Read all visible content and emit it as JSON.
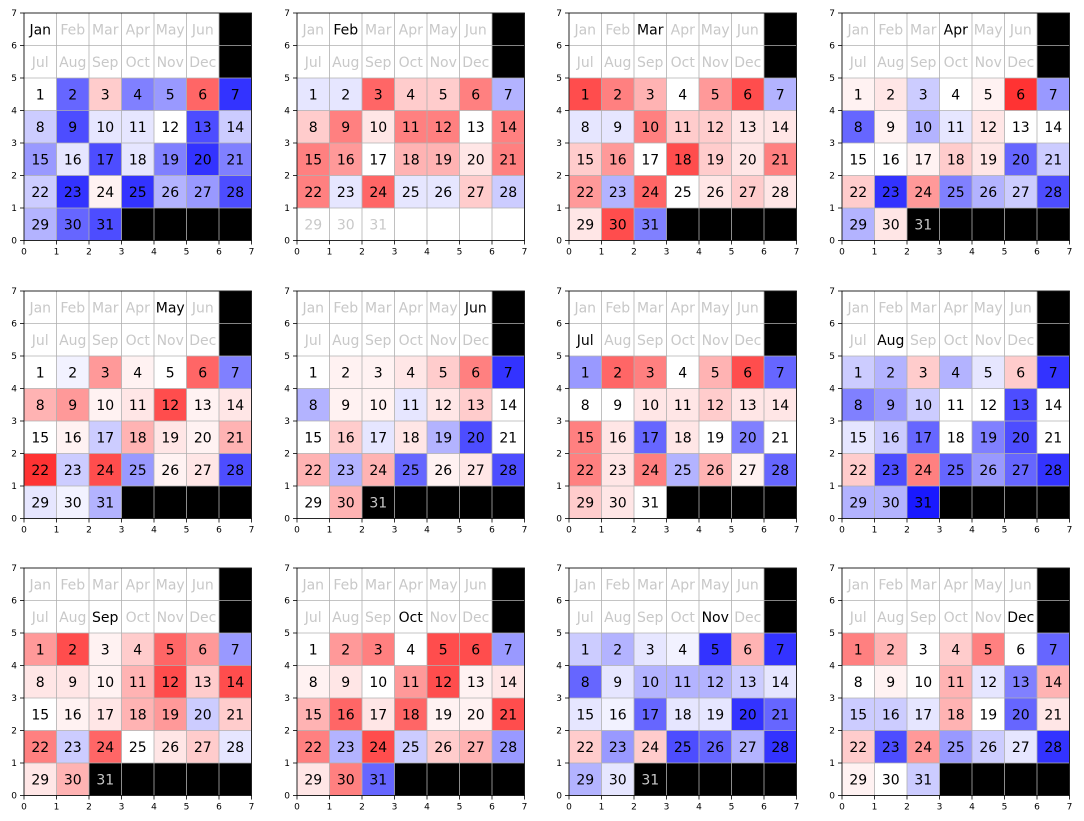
{
  "chart_data": {
    "type": "heatmap",
    "colormap": "bwr",
    "color_range": [
      -1,
      1
    ],
    "xlim": [
      0,
      7
    ],
    "ylim": [
      0,
      7
    ],
    "grid": true,
    "x_ticks": [
      "0",
      "1",
      "2",
      "3",
      "4",
      "5",
      "6",
      "7"
    ],
    "y_ticks": [
      "0",
      "1",
      "2",
      "3",
      "4",
      "5",
      "6",
      "7"
    ],
    "month_labels": [
      "Jan",
      "Feb",
      "Mar",
      "Apr",
      "May",
      "Jun",
      "Jul",
      "Aug",
      "Sep",
      "Oct",
      "Nov",
      "Dec"
    ],
    "colors": {
      "active_label": "#000000",
      "inactive_label": "#c8c8c8",
      "blank_cell": "#000000",
      "grid": "#b0b0b0"
    },
    "panels": [
      {
        "month": "Jan",
        "days": 31,
        "values": [
          0,
          -0.6,
          0.2,
          -0.5,
          -0.4,
          0.6,
          -0.8,
          -0.2,
          -0.7,
          -0.1,
          -0.1,
          0,
          -0.7,
          -0.2,
          -0.4,
          -0.1,
          -0.7,
          -0.1,
          -0.5,
          -0.8,
          -0.5,
          -0.2,
          -0.8,
          0.05,
          -0.8,
          -0.3,
          -0.4,
          -0.7,
          -0.3,
          -0.6,
          -0.7
        ]
      },
      {
        "month": "Feb",
        "days": 28,
        "values": [
          -0.1,
          -0.1,
          0.6,
          0.2,
          0.2,
          0.5,
          -0.3,
          0.2,
          0.5,
          0.1,
          0.5,
          0.5,
          0,
          0.5,
          0.5,
          0.4,
          0,
          0.3,
          0.3,
          0.1,
          0.5,
          0.5,
          -0.1,
          0.6,
          -0.1,
          -0.1,
          0.2,
          -0.2
        ]
      },
      {
        "month": "Mar",
        "days": 31,
        "values": [
          0.7,
          0.5,
          0.3,
          0,
          0.4,
          0.7,
          -0.3,
          -0.1,
          -0.1,
          0.5,
          0.2,
          0.2,
          0.1,
          0.1,
          0.2,
          0.4,
          0,
          0.7,
          0.2,
          0.1,
          0.5,
          0.4,
          -0.3,
          0.6,
          0,
          0.1,
          0.2,
          0.1,
          0.1,
          0.7,
          -0.5
        ]
      },
      {
        "month": "Apr",
        "days": 30,
        "values": [
          0.05,
          0.1,
          -0.2,
          0,
          0.05,
          0.8,
          -0.4,
          -0.6,
          0.05,
          -0.3,
          -0.1,
          0.1,
          0,
          0,
          0,
          0,
          0.05,
          0.2,
          0.1,
          -0.6,
          -0.2,
          0.2,
          -0.8,
          0.4,
          -0.5,
          -0.3,
          -0.2,
          -0.7,
          -0.3,
          0.1
        ]
      },
      {
        "month": "May",
        "days": 31,
        "values": [
          0,
          -0.05,
          0.4,
          0.05,
          0,
          0.6,
          -0.5,
          0.3,
          0.4,
          0.05,
          0.1,
          0.7,
          0.05,
          0.1,
          0,
          0.05,
          -0.2,
          0.3,
          0.1,
          0.05,
          0.3,
          0.8,
          -0.2,
          0.7,
          -0.4,
          0.05,
          0.1,
          -0.7,
          -0.1,
          -0.05,
          -0.3
        ]
      },
      {
        "month": "Jun",
        "days": 30,
        "values": [
          0,
          0.05,
          0.05,
          0.1,
          0.2,
          0.5,
          -0.8,
          -0.3,
          0.05,
          0.05,
          -0.1,
          0.1,
          0.2,
          0,
          0,
          0.2,
          -0.1,
          0.1,
          -0.3,
          -0.7,
          0,
          0.3,
          -0.3,
          0.3,
          -0.6,
          0.05,
          0.1,
          -0.7,
          0,
          0.3
        ]
      },
      {
        "month": "Jul",
        "days": 31,
        "values": [
          -0.4,
          0.6,
          0.5,
          0,
          0.3,
          0.7,
          -0.6,
          0,
          0,
          0.1,
          0.1,
          0.2,
          0.1,
          0.1,
          0.5,
          0.1,
          -0.6,
          0.1,
          0,
          -0.5,
          0,
          0.5,
          0.1,
          0.5,
          -0.3,
          0.3,
          0.05,
          -0.6,
          0.2,
          0.1,
          0
        ]
      },
      {
        "month": "Aug",
        "days": 31,
        "values": [
          -0.2,
          -0.3,
          0.2,
          -0.3,
          -0.1,
          0.2,
          -0.8,
          -0.5,
          -0.4,
          -0.2,
          0,
          0,
          -0.7,
          0,
          -0.1,
          -0.2,
          -0.6,
          0,
          -0.5,
          -0.7,
          0,
          0.2,
          -0.7,
          0.5,
          -0.6,
          -0.4,
          -0.6,
          -0.8,
          -0.3,
          -0.3,
          -0.9
        ]
      },
      {
        "month": "Sep",
        "days": 30,
        "values": [
          0.4,
          0.7,
          0.05,
          0.2,
          0.6,
          0.4,
          -0.4,
          0.1,
          0.1,
          0.05,
          0.3,
          0.7,
          0.2,
          0.7,
          0,
          0.05,
          0.1,
          0.3,
          0.4,
          -0.2,
          0.2,
          0.5,
          -0.2,
          0.6,
          0,
          0.1,
          0.2,
          -0.1,
          0.1,
          0.3
        ]
      },
      {
        "month": "Oct",
        "days": 31,
        "values": [
          0,
          0.4,
          0.5,
          0,
          0.7,
          0.7,
          -0.4,
          0.05,
          0.1,
          0,
          0.4,
          0.7,
          0.05,
          0.1,
          0.3,
          0.6,
          0.1,
          0.6,
          0.05,
          0.05,
          0.7,
          0.5,
          -0.3,
          0.7,
          -0.2,
          0.2,
          0.3,
          -0.4,
          0.1,
          0.5,
          -0.6
        ]
      },
      {
        "month": "Nov",
        "days": 30,
        "values": [
          -0.2,
          -0.3,
          -0.1,
          -0.05,
          -0.8,
          0.3,
          -0.8,
          -0.6,
          -0.1,
          -0.3,
          -0.3,
          -0.3,
          -0.2,
          -0.1,
          -0.1,
          -0.05,
          -0.6,
          -0.1,
          -0.1,
          -0.8,
          -0.6,
          0.2,
          -0.4,
          0.2,
          -0.7,
          -0.6,
          -0.3,
          -0.8,
          -0.3,
          -0.1
        ]
      },
      {
        "month": "Dec",
        "days": 31,
        "values": [
          0.5,
          0.3,
          0,
          0.2,
          0.5,
          0,
          -0.6,
          0,
          0.05,
          0,
          0.3,
          -0.1,
          -0.5,
          0.3,
          -0.2,
          -0.2,
          -0.1,
          0.3,
          0,
          -0.6,
          0.1,
          0.2,
          -0.7,
          0.4,
          -0.4,
          -0.2,
          -0.1,
          -0.8,
          0.05,
          0,
          -0.2
        ]
      }
    ]
  }
}
